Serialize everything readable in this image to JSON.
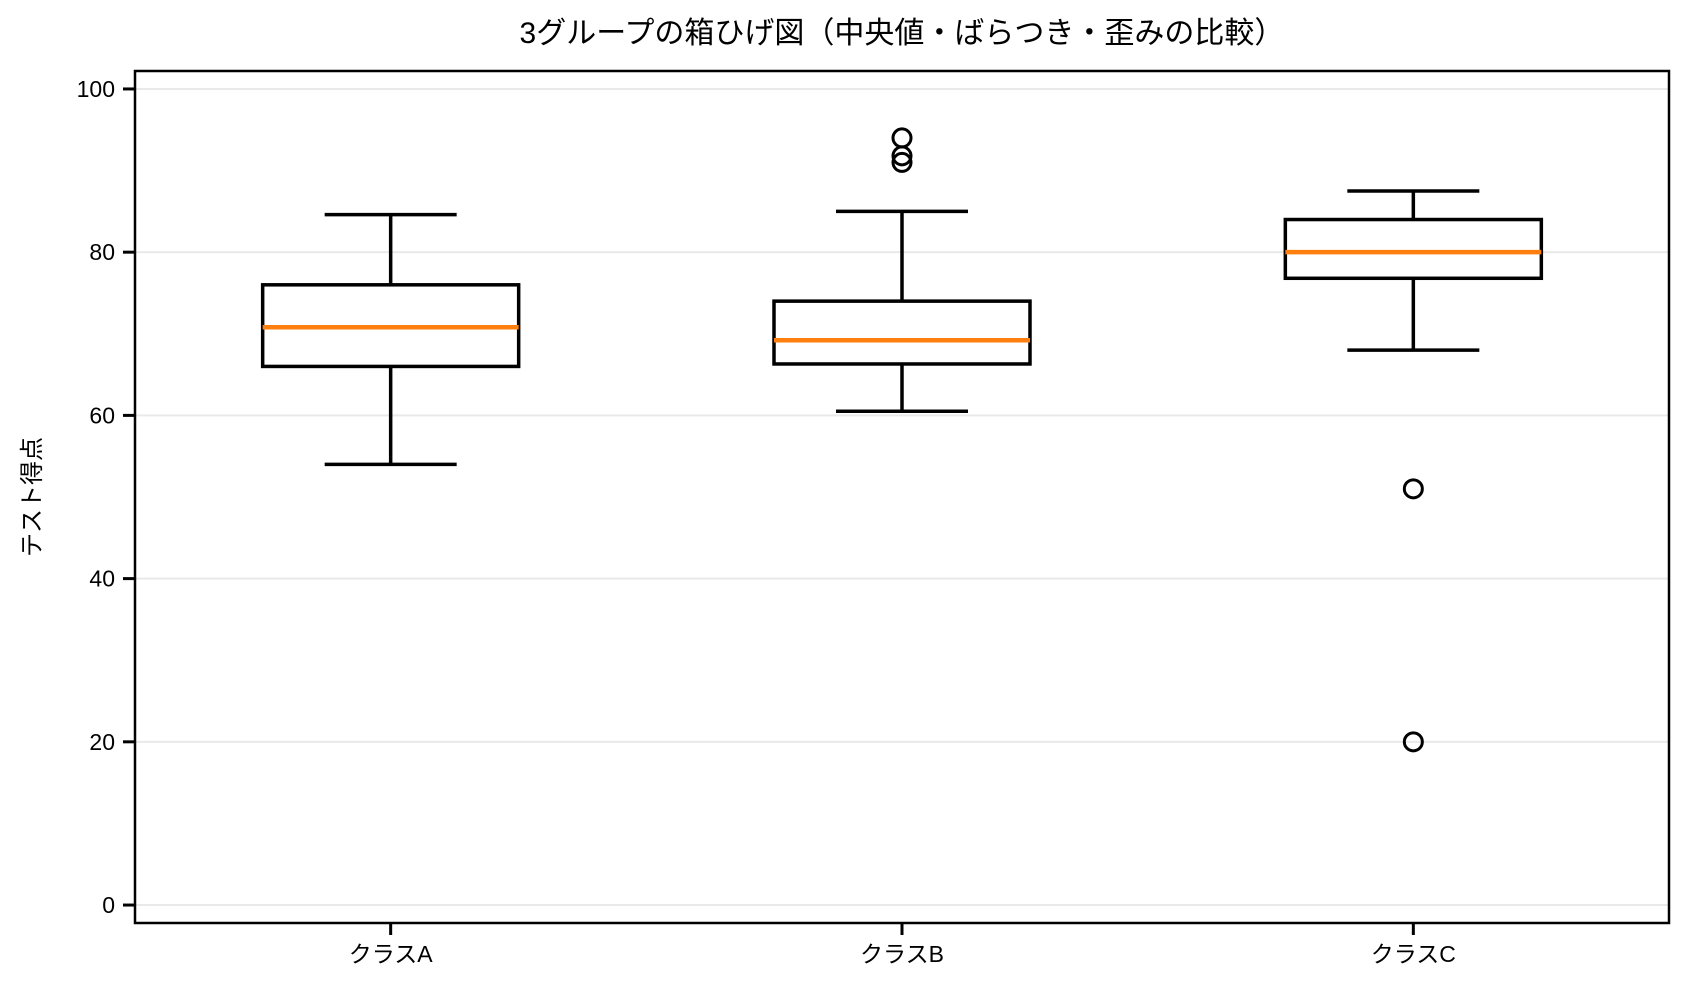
{
  "chart_data": {
    "type": "boxplot",
    "title": "3グループの箱ひげ図（中央値・ばらつき・歪みの比較）",
    "ylabel": "テスト得点",
    "xlabel": "",
    "categories": [
      "クラスA",
      "クラスB",
      "クラスC"
    ],
    "series": [
      {
        "name": "クラスA",
        "whislo": 54,
        "q1": 66,
        "med": 70.8,
        "q3": 76,
        "whishi": 84.6,
        "fliers": []
      },
      {
        "name": "クラスB",
        "whislo": 60.5,
        "q1": 66.3,
        "med": 69.2,
        "q3": 74,
        "whishi": 85,
        "fliers": [
          91,
          91.8,
          94
        ]
      },
      {
        "name": "クラスC",
        "whislo": 68,
        "q1": 76.8,
        "med": 80,
        "q3": 84,
        "whishi": 87.5,
        "fliers": [
          51,
          20
        ]
      }
    ],
    "yticks": [
      0,
      20,
      40,
      60,
      80,
      100
    ],
    "ylim": [
      -2.2,
      102.2
    ],
    "grid": "horizontal",
    "legend": "none",
    "colors": {
      "box_edge": "#000000",
      "box_fill": "#ffffff",
      "median": "#ff7f0e",
      "whisker": "#000000",
      "flier_edge": "#000000",
      "grid": "#e9e9e9",
      "spine": "#000000",
      "text": "#000000",
      "background": "#ffffff"
    }
  }
}
